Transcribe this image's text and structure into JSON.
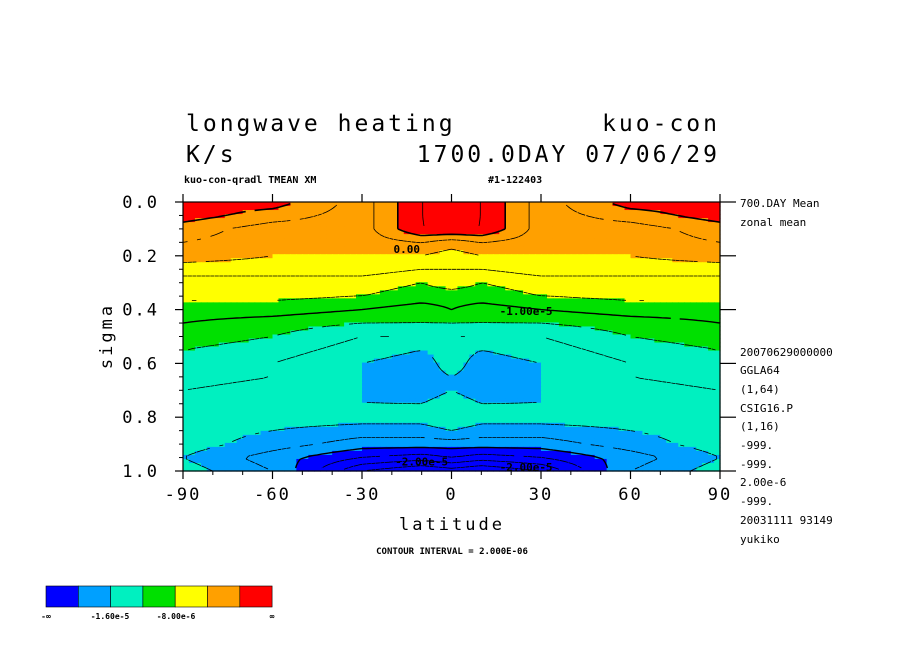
{
  "header": {
    "title_left": "longwave heating",
    "title_right": "kuo-con",
    "units": "K/s",
    "time_label": "1700.0DAY 07/06/29",
    "dataset": "kuo-con-qradl TMEAN XM",
    "run_id": "#1-122403"
  },
  "side_info": {
    "top": [
      "700.DAY Mean",
      "zonal mean"
    ],
    "bottom": [
      "20070629000000",
      "GGLA64",
      "(1,64)",
      "CSIG16.P",
      "(1,16)",
      "-999.",
      "-999.",
      "2.00e-6",
      "-999.",
      "20031111  93149",
      "yukiko"
    ]
  },
  "footer": {
    "contour_interval": "CONTOUR INTERVAL = 2.000E-06"
  },
  "colorbar": {
    "colors": [
      "#0000ff",
      "#00a0ff",
      "#00f0c0",
      "#00e000",
      "#ffff00",
      "#ffa000",
      "#ff0000"
    ],
    "labels": [
      "-∞",
      "-1.60e-5",
      "-8.00e-6",
      "∞"
    ]
  },
  "chart_data": {
    "type": "heatmap",
    "subtype": "filled-contour",
    "xlabel": "latitude",
    "ylabel": "sigma",
    "xlim": [
      -90,
      90
    ],
    "ylim": [
      1.0,
      0.0
    ],
    "xticks": [
      -90,
      -60,
      -30,
      0,
      30,
      60,
      90
    ],
    "yticks": [
      0.0,
      0.2,
      0.4,
      0.6,
      0.8,
      1.0
    ],
    "xtick_labels": [
      "-90",
      "-60",
      "-30",
      "0",
      "30",
      "60",
      "90"
    ],
    "ytick_labels": [
      "0.0",
      "0.2",
      "0.4",
      "0.6",
      "0.8",
      "1.0"
    ],
    "x": [
      -90,
      -60,
      -30,
      -10,
      0,
      10,
      30,
      60,
      90
    ],
    "y": [
      0.0,
      0.05,
      0.1,
      0.15,
      0.2,
      0.25,
      0.3,
      0.35,
      0.4,
      0.45,
      0.5,
      0.55,
      0.6,
      0.65,
      0.7,
      0.75,
      0.8,
      0.85,
      0.9,
      0.95,
      1.0
    ],
    "z": [
      [
        1e-06,
        1e-06,
        -3e-06,
        2e-06,
        3e-06,
        2e-06,
        -3e-06,
        1e-06,
        1e-06
      ],
      [
        1e-06,
        -1e-06,
        -3e-06,
        2e-06,
        3e-06,
        2e-06,
        -3e-06,
        -1e-06,
        1e-06
      ],
      [
        -1e-06,
        -3e-06,
        -3e-06,
        2e-06,
        2e-06,
        2e-06,
        -3e-06,
        -3e-06,
        -1e-06
      ],
      [
        -2e-06,
        -3e-06,
        -3e-06,
        -2e-06,
        -3e-06,
        -2e-06,
        -3e-06,
        -3e-06,
        -2e-06
      ],
      [
        -3e-06,
        -4e-06,
        -4e-06,
        -4e-06,
        -5e-06,
        -4e-06,
        -4e-06,
        -4e-06,
        -3e-06
      ],
      [
        -5e-06,
        -5e-06,
        -5e-06,
        -6e-06,
        -6e-06,
        -6e-06,
        -5e-06,
        -5e-06,
        -5e-06
      ],
      [
        -7e-06,
        -7e-06,
        -7e-06,
        -8e-06,
        -7e-06,
        -8e-06,
        -7e-06,
        -7e-06,
        -7e-06
      ],
      [
        -7.5e-06,
        -7.5e-06,
        -8e-06,
        -9e-06,
        -9e-06,
        -9e-06,
        -8e-06,
        -7.5e-06,
        -7.5e-06
      ],
      [
        -9e-06,
        -9e-06,
        -1e-05,
        -1.1e-05,
        -1e-05,
        -1.1e-05,
        -1e-05,
        -9e-06,
        -9e-06
      ],
      [
        -1e-05,
        -1.1e-05,
        -1.2e-05,
        -1.2e-05,
        -1.2e-05,
        -1.2e-05,
        -1.2e-05,
        -1.1e-05,
        -1e-05
      ],
      [
        -1.1e-05,
        -1.2e-05,
        -1.4e-05,
        -1.4e-05,
        -1.4e-05,
        -1.4e-05,
        -1.4e-05,
        -1.2e-05,
        -1.1e-05
      ],
      [
        -1.2e-05,
        -1.3e-05,
        -1.5e-05,
        -1.6e-05,
        -1.5e-05,
        -1.6e-05,
        -1.5e-05,
        -1.3e-05,
        -1.2e-05
      ],
      [
        -1.2e-05,
        -1.4e-05,
        -1.6e-05,
        -1.7e-05,
        -1.5e-05,
        -1.7e-05,
        -1.6e-05,
        -1.4e-05,
        -1.2e-05
      ],
      [
        -1.3e-05,
        -1.4e-05,
        -1.6e-05,
        -1.7e-05,
        -1.6e-05,
        -1.7e-05,
        -1.6e-05,
        -1.4e-05,
        -1.3e-05
      ],
      [
        -1.4e-05,
        -1.5e-05,
        -1.6e-05,
        -1.7e-05,
        -1.6e-05,
        -1.7e-05,
        -1.6e-05,
        -1.5e-05,
        -1.4e-05
      ],
      [
        -1.5e-05,
        -1.5e-05,
        -1.6e-05,
        -1.6e-05,
        -1.5e-05,
        -1.6e-05,
        -1.6e-05,
        -1.5e-05,
        -1.5e-05
      ],
      [
        -1.5e-05,
        -1.5e-05,
        -1.5e-05,
        -1.5e-05,
        -1.4e-05,
        -1.5e-05,
        -1.5e-05,
        -1.5e-05,
        -1.5e-05
      ],
      [
        -1.5e-05,
        -1.6e-05,
        -1.7e-05,
        -1.7e-05,
        -1.6e-05,
        -1.7e-05,
        -1.7e-05,
        -1.6e-05,
        -1.5e-05
      ],
      [
        -1.5e-05,
        -1.7e-05,
        -1.9e-05,
        -1.9e-05,
        -1.9e-05,
        -1.9e-05,
        -1.9e-05,
        -1.7e-05,
        -1.5e-05
      ],
      [
        -1.6e-05,
        -1.9e-05,
        -2.2e-05,
        -2.3e-05,
        -2.2e-05,
        -2.3e-05,
        -2.2e-05,
        -1.9e-05,
        -1.6e-05
      ],
      [
        -1.5e-05,
        -1.8e-05,
        -2.6e-05,
        -2.8e-05,
        -2.7e-05,
        -2.8e-05,
        -2.6e-05,
        -1.8e-05,
        -1.5e-05
      ]
    ],
    "levels_colors": [
      "#0000ff",
      "#00a0ff",
      "#00f0c0",
      "#00e000",
      "#ffff00",
      "#ffa000",
      "#ff0000"
    ],
    "level_bounds": [
      -2e-05,
      -1.6e-05,
      -1.2e-05,
      -8e-06,
      -4e-06,
      0.0
    ],
    "contour_labels": [
      {
        "text": "0.00",
        "lat": -15,
        "sigma": 0.175
      },
      {
        "text": "-1.00e-5",
        "lat": 25,
        "sigma": 0.405
      },
      {
        "text": "-2.00e-5",
        "lat": -10,
        "sigma": 0.965
      },
      {
        "text": "-2.00e-5",
        "lat": 25,
        "sigma": 0.985
      }
    ]
  }
}
